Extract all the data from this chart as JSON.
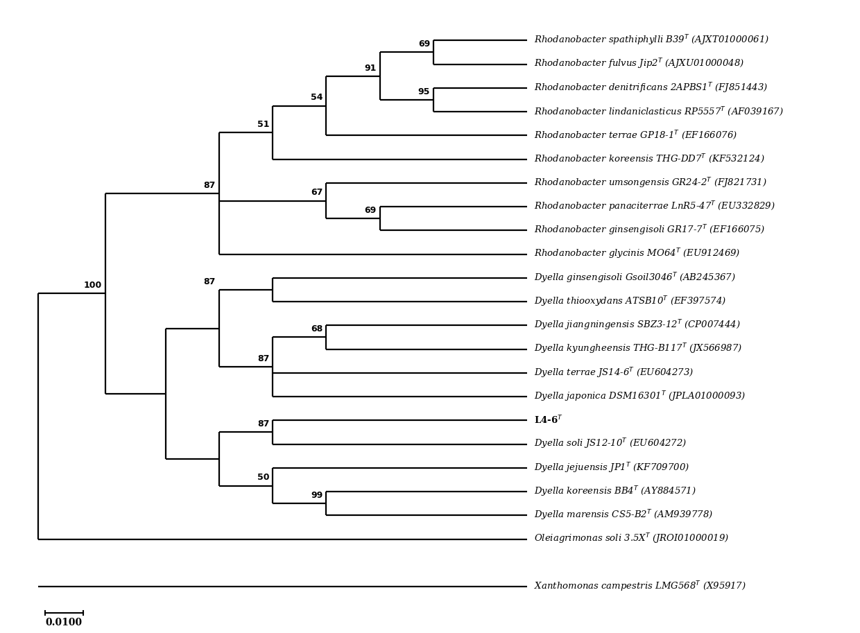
{
  "taxa": [
    {
      "name": "Rhodanobacter spathiphylli",
      "strain": "B39",
      "accession": "(AJXT01000061)",
      "bold": false,
      "y": 23
    },
    {
      "name": "Rhodanobacter fulvus",
      "strain": "Jip2",
      "accession": "(AJXU01000048)",
      "bold": false,
      "y": 22
    },
    {
      "name": "Rhodanobacter denitrificans",
      "strain": "2APBS1",
      "accession": "(FJ851443)",
      "bold": false,
      "y": 21
    },
    {
      "name": "Rhodanobacter lindaniclasticus",
      "strain": "RP5557",
      "accession": "(AF039167)",
      "bold": false,
      "y": 20
    },
    {
      "name": "Rhodanobacter terrae",
      "strain": "GP18-1",
      "accession": "(EF166076)",
      "bold": false,
      "y": 19
    },
    {
      "name": "Rhodanobacter koreensis",
      "strain": "THG-DD7",
      "accession": "(KF532124)",
      "bold": false,
      "y": 18
    },
    {
      "name": "Rhodanobacter umsongensis",
      "strain": "GR24-2",
      "accession": "(FJ821731)",
      "bold": false,
      "y": 17
    },
    {
      "name": "Rhodanobacter panaciterrae",
      "strain": "LnR5-47",
      "accession": "(EU332829)",
      "bold": false,
      "y": 16
    },
    {
      "name": "Rhodanobacter ginsengisoli",
      "strain": "GR17-7",
      "accession": "(EF166075)",
      "bold": false,
      "y": 15
    },
    {
      "name": "Rhodanobacter glycinis",
      "strain": "MO64",
      "accession": "(EU912469)",
      "bold": false,
      "y": 14
    },
    {
      "name": "Dyella ginsengisoli",
      "strain": "Gsoil3046",
      "accession": "(AB245367)",
      "bold": false,
      "y": 13
    },
    {
      "name": "Dyella thiooxydans",
      "strain": "ATSB10",
      "accession": "(EF397574)",
      "bold": false,
      "y": 12
    },
    {
      "name": "Dyella jiangningensis",
      "strain": "SBZ3-12",
      "accession": "(CP007444)",
      "bold": false,
      "y": 11
    },
    {
      "name": "Dyella kyungheensis",
      "strain": "THG-B117",
      "accession": "(JX566987)",
      "bold": false,
      "y": 10
    },
    {
      "name": "Dyella terrae",
      "strain": "JS14-6",
      "accession": "(EU604273)",
      "bold": false,
      "y": 9
    },
    {
      "name": "Dyella japonica",
      "strain": "DSM16301",
      "accession": "(JPLA01000093)",
      "bold": false,
      "y": 8
    },
    {
      "name": "L4-6",
      "strain": "",
      "accession": "",
      "bold": true,
      "y": 7
    },
    {
      "name": "Dyella soli",
      "strain": "JS12-10",
      "accession": "(EU604272)",
      "bold": false,
      "y": 6
    },
    {
      "name": "Dyella jejuensis",
      "strain": "JP1",
      "accession": "(KF709700)",
      "bold": false,
      "y": 5
    },
    {
      "name": "Dyella koreensis",
      "strain": "BB4",
      "accession": "(AY884571)",
      "bold": false,
      "y": 4
    },
    {
      "name": "Dyella marensis",
      "strain": "CS5-B2",
      "accession": "(AM939778)",
      "bold": false,
      "y": 3
    },
    {
      "name": "Oleiagrimonas soli",
      "strain": "3.5X",
      "accession": "(JROI01000019)",
      "bold": false,
      "y": 2
    },
    {
      "name": "Xanthomonas campestris",
      "strain": "LMG568",
      "accession": "(X95917)",
      "bold": false,
      "y": 0
    }
  ],
  "lw": 1.6
}
